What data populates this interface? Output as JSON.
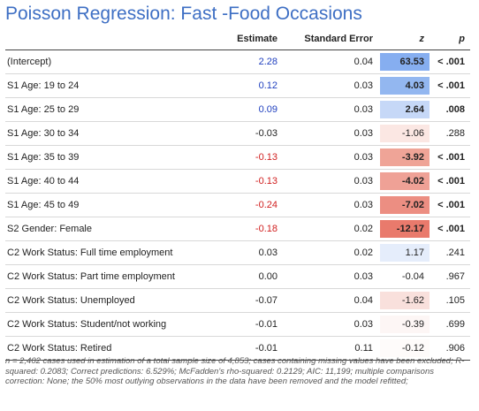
{
  "title": "Poisson Regression: Fast -Food Occasions",
  "headers": {
    "name": "",
    "estimate": "Estimate",
    "se": "Standard Error",
    "z": "z",
    "p": "p"
  },
  "colors": {
    "title": "#3e6fc4",
    "positive": "#1f3fbf",
    "negative": "#d12020",
    "neutral": "#222222"
  },
  "rows": [
    {
      "name": "(Intercept)",
      "estimate": "2.28",
      "sign": "pos",
      "se": "0.04",
      "z": "63.53",
      "z_bg": "#86aef0",
      "z_bold": true,
      "p": "< .001",
      "p_bold": true
    },
    {
      "name": "S1 Age: 19 to 24",
      "estimate": "0.12",
      "sign": "pos",
      "se": "0.03",
      "z": "4.03",
      "z_bg": "#93b7f0",
      "z_bold": true,
      "p": "< .001",
      "p_bold": true
    },
    {
      "name": "S1 Age: 25 to 29",
      "estimate": "0.09",
      "sign": "pos",
      "se": "0.03",
      "z": "2.64",
      "z_bg": "#c6d8f7",
      "z_bold": true,
      "p": ".008",
      "p_bold": true
    },
    {
      "name": "S1 Age: 30 to 34",
      "estimate": "-0.03",
      "sign": "neutral",
      "se": "0.03",
      "z": "-1.06",
      "z_bg": "#fbe7e3",
      "z_bold": false,
      "p": ".288",
      "p_bold": false
    },
    {
      "name": "S1 Age: 35 to 39",
      "estimate": "-0.13",
      "sign": "neg",
      "se": "0.03",
      "z": "-3.92",
      "z_bg": "#efa497",
      "z_bold": true,
      "p": "< .001",
      "p_bold": true
    },
    {
      "name": "S1 Age: 40 to 44",
      "estimate": "-0.13",
      "sign": "neg",
      "se": "0.03",
      "z": "-4.02",
      "z_bg": "#efa196",
      "z_bold": true,
      "p": "< .001",
      "p_bold": true
    },
    {
      "name": "S1 Age: 45 to 49",
      "estimate": "-0.24",
      "sign": "neg",
      "se": "0.03",
      "z": "-7.02",
      "z_bg": "#ec8e82",
      "z_bold": true,
      "p": "< .001",
      "p_bold": true
    },
    {
      "name": "S2 Gender: Female",
      "estimate": "-0.18",
      "sign": "neg",
      "se": "0.02",
      "z": "-12.17",
      "z_bg": "#e97a6c",
      "z_bold": true,
      "p": "< .001",
      "p_bold": true
    },
    {
      "name": "C2 Work Status: Full time employment",
      "estimate": "0.03",
      "sign": "neutral",
      "se": "0.02",
      "z": "1.17",
      "z_bg": "#e5edfb",
      "z_bold": false,
      "p": ".241",
      "p_bold": false
    },
    {
      "name": "C2 Work Status: Part time employment",
      "estimate": "0.00",
      "sign": "neutral",
      "se": "0.03",
      "z": "-0.04",
      "z_bg": "#ffffff",
      "z_bold": false,
      "p": ".967",
      "p_bold": false
    },
    {
      "name": "C2 Work Status: Unemployed",
      "estimate": "-0.07",
      "sign": "neutral",
      "se": "0.04",
      "z": "-1.62",
      "z_bg": "#f9e0dc",
      "z_bold": false,
      "p": ".105",
      "p_bold": false
    },
    {
      "name": "C2 Work Status: Student/not working",
      "estimate": "-0.01",
      "sign": "neutral",
      "se": "0.03",
      "z": "-0.39",
      "z_bg": "#fdf6f5",
      "z_bold": false,
      "p": ".699",
      "p_bold": false
    },
    {
      "name": "C2 Work Status: Retired",
      "estimate": "-0.01",
      "sign": "neutral",
      "se": "0.11",
      "z": "-0.12",
      "z_bg": "#fefbfa",
      "z_bold": false,
      "p": ".906",
      "p_bold": false
    }
  ],
  "footnote": "n = 2,402 cases used in estimation of a total sample size of 4,853; cases containing missing values have been excluded; R-squared: 0.2083; Correct predictions: 6.529%; McFadden's rho-squared: 0.2129; AIC: 11,199; multiple comparisons correction: None; the 50% most outlying observations in the data have been removed and the model refitted;"
}
